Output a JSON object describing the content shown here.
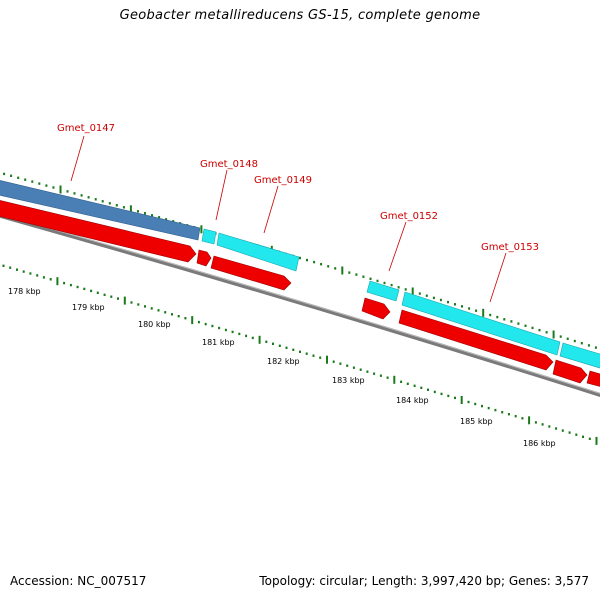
{
  "title": "Geobacter metallireducens GS-15, complete genome",
  "footer": {
    "accession": "Accession: NC_007517",
    "summary": "Topology: circular; Length: 3,997,420 bp; Genes: 3,577"
  },
  "colors": {
    "gene_label": "#cc0000",
    "cds_red": "#ee0000",
    "feature_cyan": "#22e8ee",
    "feature_blue": "#4a7fb5",
    "backbone": "#888888",
    "tick_green": "#1a7a1a"
  },
  "gene_labels": [
    {
      "id": "gmet-0147",
      "text": "Gmet_0147"
    },
    {
      "id": "gmet-0148",
      "text": "Gmet_0148"
    },
    {
      "id": "gmet-0149",
      "text": "Gmet_0149"
    },
    {
      "id": "gmet-0152",
      "text": "Gmet_0152"
    },
    {
      "id": "gmet-0153",
      "text": "Gmet_0153"
    }
  ],
  "kbp_labels": [
    "178 kbp",
    "179 kbp",
    "180 kbp",
    "181 kbp",
    "182 kbp",
    "183 kbp",
    "184 kbp",
    "185 kbp",
    "186 kbp"
  ]
}
